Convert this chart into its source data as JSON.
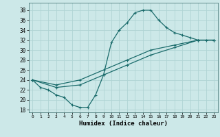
{
  "xlabel": "Humidex (Indice chaleur)",
  "bg_color": "#cce8e8",
  "grid_color": "#b0d4d4",
  "line_color": "#1a6b6b",
  "xlim": [
    -0.5,
    23.5
  ],
  "ylim": [
    17.5,
    39.5
  ],
  "xticks": [
    0,
    1,
    2,
    3,
    4,
    5,
    6,
    7,
    8,
    9,
    10,
    11,
    12,
    13,
    14,
    15,
    16,
    17,
    18,
    19,
    20,
    21,
    22,
    23
  ],
  "yticks": [
    18,
    20,
    22,
    24,
    26,
    28,
    30,
    32,
    34,
    36,
    38
  ],
  "curve1_x": [
    0,
    1,
    2,
    3,
    4,
    5,
    6,
    7,
    8,
    9,
    10,
    11,
    12,
    13,
    14,
    15,
    16,
    17,
    18,
    19,
    20,
    21,
    22,
    23
  ],
  "curve1_y": [
    24,
    22.5,
    22,
    21,
    20.5,
    19,
    18.5,
    18.5,
    21,
    25,
    31.5,
    34,
    35.5,
    37.5,
    38,
    38,
    36,
    34.5,
    33.5,
    33,
    32.5,
    32,
    32,
    32
  ],
  "curve2_x": [
    0,
    3,
    6,
    9,
    12,
    15,
    18,
    21,
    23
  ],
  "curve2_y": [
    24,
    23,
    24,
    26,
    28,
    30,
    31,
    32,
    32
  ],
  "curve3_x": [
    0,
    3,
    6,
    9,
    12,
    15,
    18,
    21,
    23
  ],
  "curve3_y": [
    24,
    22.5,
    23,
    25,
    27,
    29,
    30.5,
    32,
    32
  ]
}
